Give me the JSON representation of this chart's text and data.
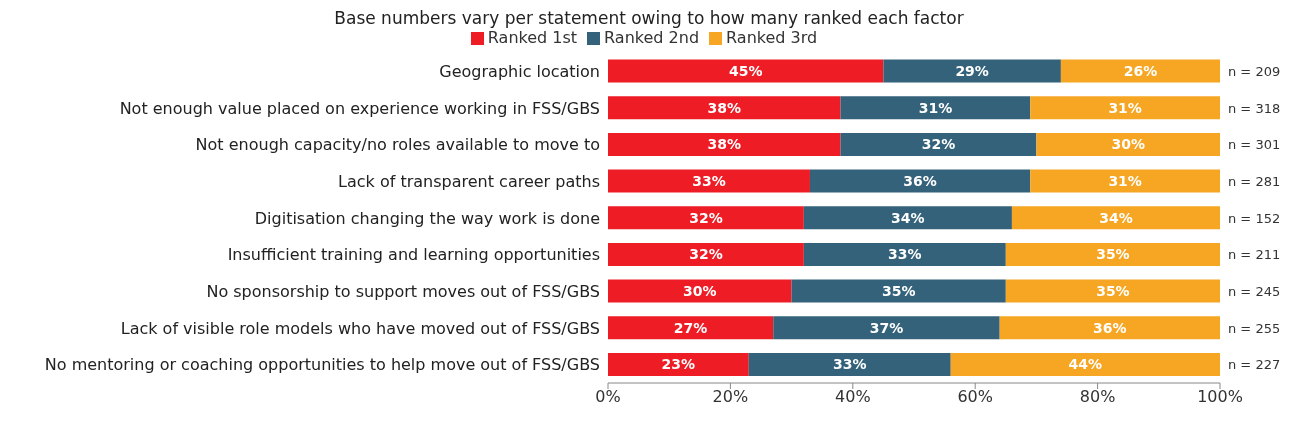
{
  "chart_data": {
    "type": "bar",
    "orientation": "horizontal",
    "stacked": true,
    "title": "Base numbers vary per statement owing to how many ranked each factor",
    "categories": [
      "Geographic location",
      "Not enough value placed on experience working in FSS/GBS",
      "Not enough capacity/no roles available to move to",
      "Lack of transparent career paths",
      "Digitisation changing the way work is done",
      "Insufficient training and learning opportunities",
      "No sponsorship to support moves out of FSS/GBS",
      "Lack of visible role models who have moved out of FSS/GBS",
      "No mentoring or coaching opportunities to help move out of FSS/GBS"
    ],
    "series": [
      {
        "name": "Ranked 1st",
        "color": "#ee1c25",
        "values": [
          45,
          38,
          38,
          33,
          32,
          32,
          30,
          27,
          23
        ],
        "value_labels": [
          "45%",
          "38%",
          "38%",
          "33%",
          "32%",
          "32%",
          "30%",
          "27%",
          "23%"
        ]
      },
      {
        "name": "Ranked 2nd",
        "color": "#33627a",
        "values": [
          29,
          31,
          32,
          36,
          34,
          33,
          35,
          37,
          33
        ],
        "value_labels": [
          "29%",
          "31%",
          "32%",
          "36%",
          "34%",
          "33%",
          "35%",
          "37%",
          "33%"
        ]
      },
      {
        "name": "Ranked 3rd",
        "color": "#f6a623",
        "values": [
          26,
          31,
          30,
          31,
          34,
          35,
          35,
          36,
          44
        ],
        "value_labels": [
          "26%",
          "31%",
          "30%",
          "31%",
          "34%",
          "35%",
          "35%",
          "36%",
          "44%"
        ]
      }
    ],
    "xlim": [
      0,
      100
    ],
    "xticks": [
      {
        "value": 0,
        "label": "0%"
      },
      {
        "value": 20,
        "label": "20%"
      },
      {
        "value": 40,
        "label": "40%"
      },
      {
        "value": 60,
        "label": "60%"
      },
      {
        "value": 80,
        "label": "80%"
      },
      {
        "value": 100,
        "label": "100%"
      }
    ],
    "annotations": [
      "n = 209",
      "n = 318",
      "n = 301",
      "n = 281",
      "n = 152",
      "n = 211",
      "n = 245",
      "n = 255",
      "n = 227"
    ],
    "legend": "top",
    "grid": false
  }
}
